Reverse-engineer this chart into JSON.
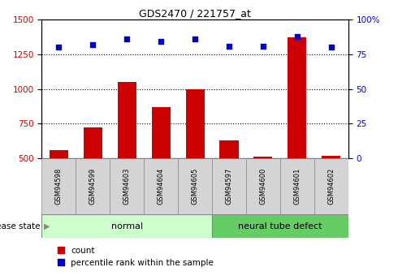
{
  "title": "GDS2470 / 221757_at",
  "samples": [
    "GSM94598",
    "GSM94599",
    "GSM94603",
    "GSM94604",
    "GSM94605",
    "GSM94597",
    "GSM94600",
    "GSM94601",
    "GSM94602"
  ],
  "counts": [
    560,
    720,
    1050,
    870,
    1000,
    630,
    510,
    1370,
    520
  ],
  "percentiles": [
    80,
    82,
    86,
    84,
    86,
    81,
    81,
    88,
    80
  ],
  "ylim_left": [
    500,
    1500
  ],
  "ylim_right": [
    0,
    100
  ],
  "yticks_left": [
    500,
    750,
    1000,
    1250,
    1500
  ],
  "yticks_right": [
    0,
    25,
    50,
    75,
    100
  ],
  "bar_color": "#cc0000",
  "scatter_color": "#0000cc",
  "normal_group": [
    0,
    1,
    2,
    3,
    4
  ],
  "defect_group": [
    5,
    6,
    7,
    8
  ],
  "normal_label": "normal",
  "defect_label": "neural tube defect",
  "disease_state_label": "disease state",
  "legend_count": "count",
  "legend_pct": "percentile rank within the sample",
  "normal_color": "#ccffcc",
  "defect_color": "#66cc66",
  "tick_label_color_left": "#cc0000",
  "tick_label_color_right": "#0000cc",
  "sample_box_color": "#d4d4d4",
  "bar_width": 0.55
}
